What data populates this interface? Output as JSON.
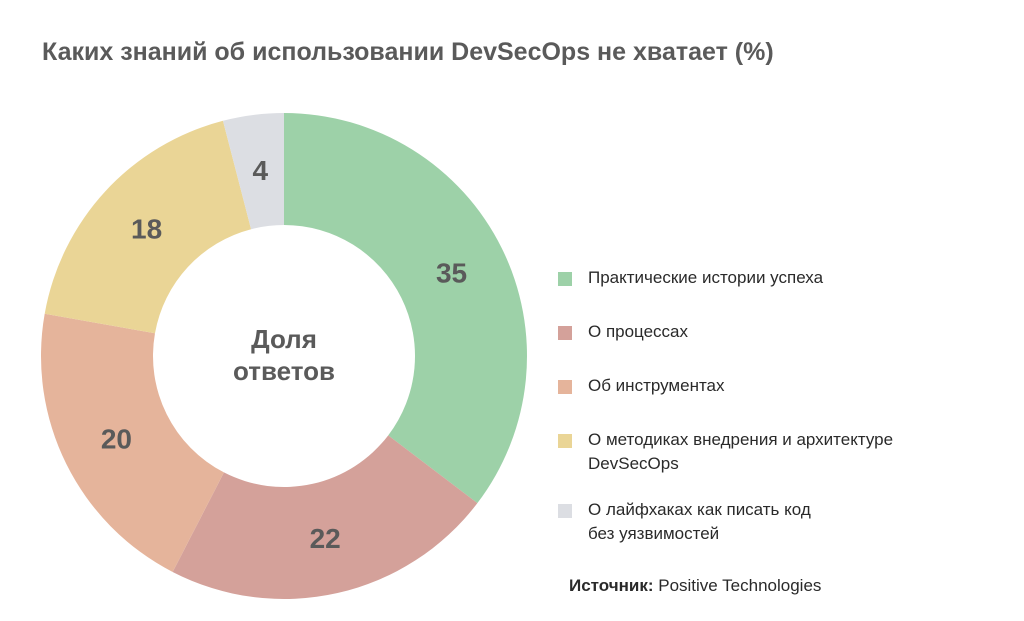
{
  "chart_data": {
    "type": "pie",
    "title": "Каких знаний об использовании DevSecOps не хватает (%)",
    "center_label": [
      "Доля",
      "ответов"
    ],
    "categories": [
      "Практические истории успеха",
      "О процессах",
      "Об инструментах",
      "О методиках внедрения и архитектуре DevSecOps",
      "О лайфхаках как писать код без уязвимостей"
    ],
    "legend_lines": [
      [
        "Практические истории успеха"
      ],
      [
        "О процессах"
      ],
      [
        "Об инструментах"
      ],
      [
        "О методиках внедрения и архитектуре",
        "DevSecOps"
      ],
      [
        "О лайфхаках как писать код",
        "без уязвимостей"
      ]
    ],
    "values": [
      35,
      22,
      20,
      18,
      4
    ],
    "colors": [
      "#9dd1a8",
      "#d4a19a",
      "#e5b49b",
      "#ead596",
      "#dcdee3"
    ],
    "legend_placement": "right"
  },
  "source": {
    "label": "Источник:",
    "value": "Positive Technologies"
  }
}
